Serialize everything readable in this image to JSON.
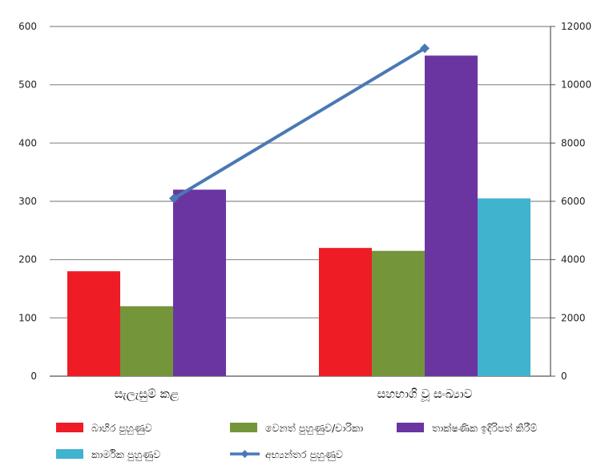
{
  "chart_data": {
    "type": "bar",
    "categories": [
      "සැලැසුම් කළ",
      "සහභාගි වූ සංඛ්‍යාව"
    ],
    "series": [
      {
        "name": "බාහිර පුහුණුව",
        "color": "#ee1c25",
        "axis": "left",
        "values": [
          180,
          220
        ]
      },
      {
        "name": "වෙනත් පුහුණුව/චාරිකා",
        "color": "#74953a",
        "axis": "left",
        "values": [
          120,
          215
        ]
      },
      {
        "name": "තාක්ෂණික ඉදිරිපත් කිරීම්",
        "color": "#6a35a1",
        "axis": "left",
        "values": [
          320,
          550
        ]
      },
      {
        "name": "කාර්මික පුහුණුව",
        "color": "#40b3cf",
        "axis": "left",
        "values": [
          null,
          305
        ]
      },
      {
        "name": "අභ්‍යන්තර පුහුණුව",
        "color": "#4a78b6",
        "axis": "right",
        "type": "line",
        "values": [
          6100,
          11250
        ]
      }
    ],
    "y_left": {
      "ylim": [
        0,
        600
      ],
      "ticks": [
        "0",
        "100",
        "200",
        "300",
        "400",
        "500",
        "600"
      ],
      "tick_values": [
        0,
        100,
        200,
        300,
        400,
        500,
        600
      ]
    },
    "y_right": {
      "ylim": [
        0,
        12000
      ],
      "ticks": [
        "0",
        "2000",
        "4000",
        "6000",
        "8000",
        "10000",
        "12000"
      ],
      "tick_values": [
        0,
        2000,
        4000,
        6000,
        8000,
        10000,
        12000
      ]
    },
    "grid": true,
    "legend": "bottom"
  }
}
